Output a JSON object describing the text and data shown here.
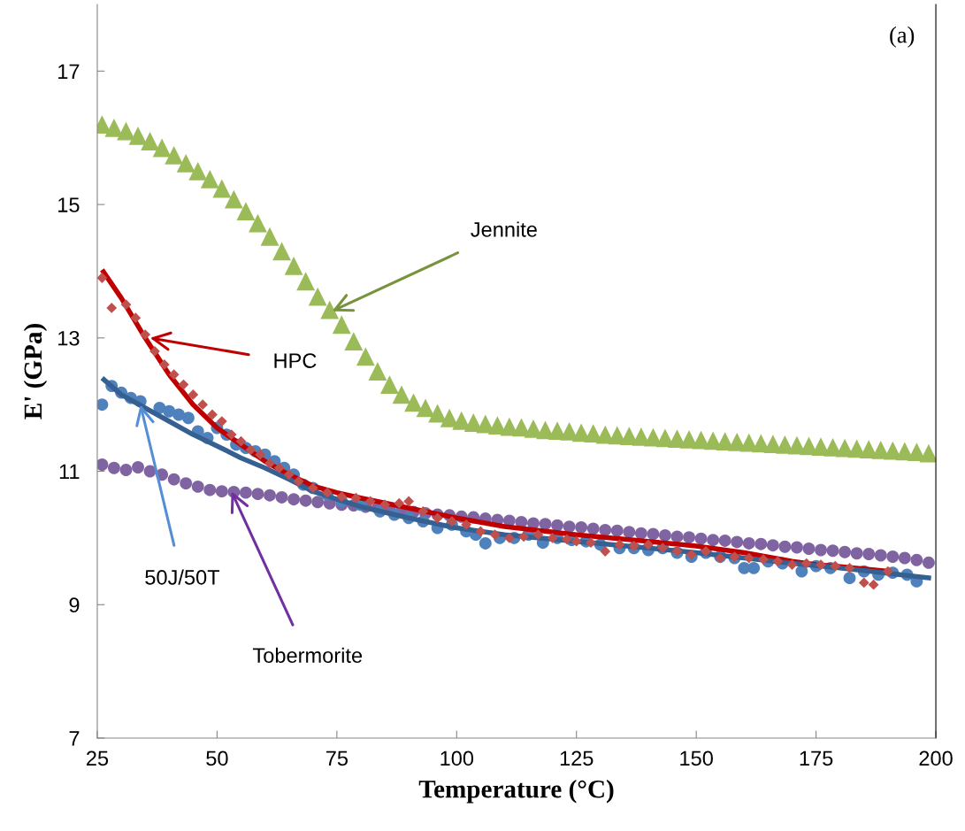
{
  "chart_data": {
    "type": "scatter",
    "xlabel": "Temperature (°C)",
    "ylabel": "E' (GPa)",
    "xlim": [
      25,
      200
    ],
    "ylim": [
      7,
      18
    ],
    "xticks": [
      25,
      50,
      75,
      100,
      125,
      150,
      175,
      200
    ],
    "yticks": [
      7,
      9,
      11,
      13,
      15,
      17
    ],
    "grid": false,
    "legend": false,
    "annotations": [
      {
        "text": "Jennite",
        "x": 74,
        "y": 13.4
      },
      {
        "text": "HPC",
        "x": 36,
        "y": 13.0
      },
      {
        "text": "50J/50T",
        "x": 34,
        "y": 12.0
      },
      {
        "text": "Tobermorite",
        "x": 53,
        "y": 10.7
      },
      "(a)"
    ],
    "series": [
      {
        "marker": "triangle",
        "color": "#9bbb59",
        "x": [
          26,
          28.5,
          31,
          33.5,
          36,
          38.5,
          41,
          43.5,
          46,
          48.5,
          51,
          53.5,
          56,
          58.5,
          61,
          63.5,
          66,
          68.5,
          71,
          73.5,
          76,
          78.5,
          81,
          83.5,
          86,
          88.5,
          91,
          93.5,
          96,
          98.5,
          101,
          103.5,
          106,
          108.5,
          111,
          113.5,
          116,
          118.5,
          121,
          123.5,
          126,
          128.5,
          131,
          133.5,
          136,
          138.5,
          141,
          143.5,
          146,
          148.5,
          151,
          153.5,
          156,
          158.5,
          161,
          163.5,
          166,
          168.5,
          171,
          173.5,
          176,
          178.5,
          181,
          183.5,
          186,
          188.5,
          191,
          193.5,
          196,
          198.5
        ],
        "values": [
          16.2,
          16.15,
          16.1,
          16.03,
          15.95,
          15.85,
          15.74,
          15.62,
          15.5,
          15.38,
          15.24,
          15.08,
          14.9,
          14.72,
          14.52,
          14.3,
          14.08,
          13.85,
          13.62,
          13.42,
          13.2,
          12.95,
          12.72,
          12.5,
          12.3,
          12.15,
          12.03,
          11.95,
          11.87,
          11.8,
          11.76,
          11.73,
          11.71,
          11.69,
          11.67,
          11.66,
          11.64,
          11.62,
          11.61,
          11.6,
          11.58,
          11.57,
          11.55,
          11.54,
          11.53,
          11.52,
          11.51,
          11.5,
          11.49,
          11.48,
          11.47,
          11.46,
          11.45,
          11.44,
          11.43,
          11.42,
          11.41,
          11.4,
          11.39,
          11.38,
          11.37,
          11.36,
          11.35,
          11.34,
          11.33,
          11.32,
          11.31,
          11.3,
          11.29,
          11.27
        ]
      },
      {
        "marker": "circle",
        "color": "#8064a2",
        "x": [
          26,
          28.5,
          31,
          33.5,
          36,
          38.5,
          41,
          43.5,
          46,
          48.5,
          51,
          53.5,
          56,
          58.5,
          61,
          63.5,
          66,
          68.5,
          71,
          73.5,
          76,
          78.5,
          81,
          83.5,
          86,
          88.5,
          91,
          93.5,
          96,
          98.5,
          101,
          103.5,
          106,
          108.5,
          111,
          113.5,
          116,
          118.5,
          121,
          123.5,
          126,
          128.5,
          131,
          133.5,
          136,
          138.5,
          141,
          143.5,
          146,
          148.5,
          151,
          153.5,
          156,
          158.5,
          161,
          163.5,
          166,
          168.5,
          171,
          173.5,
          176,
          178.5,
          181,
          183.5,
          186,
          188.5,
          191,
          193.5,
          196,
          198.5
        ],
        "values": [
          11.1,
          11.05,
          11.02,
          11.06,
          11.0,
          10.95,
          10.88,
          10.82,
          10.77,
          10.72,
          10.7,
          10.69,
          10.68,
          10.66,
          10.64,
          10.61,
          10.58,
          10.56,
          10.54,
          10.52,
          10.5,
          10.49,
          10.47,
          10.45,
          10.43,
          10.41,
          10.39,
          10.37,
          10.35,
          10.34,
          10.32,
          10.31,
          10.29,
          10.27,
          10.26,
          10.24,
          10.22,
          10.21,
          10.19,
          10.17,
          10.16,
          10.14,
          10.12,
          10.11,
          10.09,
          10.07,
          10.06,
          10.04,
          10.02,
          10.01,
          9.99,
          9.97,
          9.96,
          9.94,
          9.92,
          9.91,
          9.89,
          9.87,
          9.86,
          9.84,
          9.82,
          9.81,
          9.79,
          9.77,
          9.76,
          9.74,
          9.72,
          9.7,
          9.67,
          9.63
        ]
      },
      {
        "marker": "diamond",
        "color": "#c0504d",
        "x": [
          26,
          28,
          31,
          33,
          35,
          37,
          39,
          41,
          43,
          45,
          47,
          49,
          51,
          53,
          55,
          57,
          59,
          61,
          63,
          65,
          67,
          70,
          73,
          76,
          79,
          82,
          85,
          88,
          90,
          93,
          96,
          99,
          102,
          105,
          108,
          111,
          114,
          117,
          120,
          123,
          125,
          128,
          131,
          134,
          137,
          140,
          143,
          146,
          149,
          152,
          155,
          158,
          161,
          164,
          167,
          170,
          173,
          176,
          179,
          182,
          185,
          187,
          190
        ],
        "values": [
          13.9,
          13.45,
          13.5,
          13.3,
          13.05,
          12.8,
          12.6,
          12.45,
          12.3,
          12.15,
          12.0,
          11.85,
          11.75,
          11.55,
          11.45,
          11.32,
          11.25,
          11.12,
          11.05,
          10.95,
          10.85,
          10.75,
          10.68,
          10.62,
          10.6,
          10.55,
          10.5,
          10.52,
          10.55,
          10.4,
          10.3,
          10.25,
          10.2,
          10.1,
          10.05,
          10.0,
          10.02,
          10.05,
          10.0,
          9.98,
          9.95,
          9.93,
          9.8,
          9.9,
          9.88,
          9.9,
          9.85,
          9.8,
          9.75,
          9.8,
          9.7,
          9.72,
          9.7,
          9.68,
          9.65,
          9.6,
          9.62,
          9.6,
          9.58,
          9.55,
          9.33,
          9.3,
          9.5
        ]
      },
      {
        "marker": "circle",
        "color": "#4f81bd",
        "x": [
          26,
          28,
          30,
          32,
          34,
          38,
          40,
          42,
          44,
          46,
          48,
          50,
          52,
          54,
          56,
          58,
          60,
          62,
          64,
          66,
          68,
          70,
          73,
          76,
          80,
          84,
          87,
          90,
          93,
          96,
          99,
          102,
          104,
          106,
          109,
          112,
          115,
          118,
          121,
          124,
          127,
          130,
          134,
          137,
          140,
          143,
          146,
          149,
          152,
          155,
          158,
          160,
          162,
          165,
          168,
          172,
          175,
          178,
          182,
          185,
          188,
          191,
          194,
          196
        ],
        "values": [
          12.0,
          12.28,
          12.18,
          12.1,
          12.05,
          11.95,
          11.9,
          11.85,
          11.8,
          11.6,
          11.5,
          11.65,
          11.55,
          11.4,
          11.35,
          11.3,
          11.25,
          11.15,
          11.05,
          10.95,
          10.8,
          10.75,
          10.65,
          10.55,
          10.5,
          10.4,
          10.35,
          10.3,
          10.25,
          10.15,
          10.2,
          10.1,
          10.05,
          9.92,
          10.0,
          10.0,
          10.05,
          9.93,
          10.0,
          9.97,
          9.95,
          9.9,
          9.85,
          9.85,
          9.82,
          9.85,
          9.78,
          9.72,
          9.78,
          9.72,
          9.7,
          9.55,
          9.55,
          9.65,
          9.62,
          9.5,
          9.58,
          9.55,
          9.4,
          9.5,
          9.45,
          9.48,
          9.45,
          9.35
        ]
      },
      {
        "type": "line",
        "color": "#c00000",
        "x": [
          26,
          30,
          35,
          40,
          45,
          50,
          55,
          60,
          65,
          70,
          75,
          80,
          90,
          100,
          110,
          125,
          140,
          150,
          160,
          170,
          175,
          180,
          190
        ],
        "values": [
          14.02,
          13.6,
          13.0,
          12.45,
          12.0,
          11.65,
          11.4,
          11.15,
          10.95,
          10.78,
          10.68,
          10.6,
          10.45,
          10.3,
          10.17,
          10.05,
          9.95,
          9.88,
          9.78,
          9.65,
          9.6,
          9.57,
          9.5
        ]
      },
      {
        "type": "line",
        "color": "#376092",
        "x": [
          26,
          30,
          35,
          40,
          45,
          50,
          55,
          60,
          65,
          70,
          75,
          80,
          90,
          100,
          110,
          125,
          140,
          150,
          160,
          170,
          180,
          190,
          199
        ],
        "values": [
          12.4,
          12.15,
          11.95,
          11.75,
          11.55,
          11.38,
          11.2,
          11.05,
          10.88,
          10.7,
          10.58,
          10.47,
          10.3,
          10.15,
          10.05,
          9.95,
          9.85,
          9.78,
          9.7,
          9.62,
          9.55,
          9.47,
          9.4
        ]
      }
    ]
  }
}
